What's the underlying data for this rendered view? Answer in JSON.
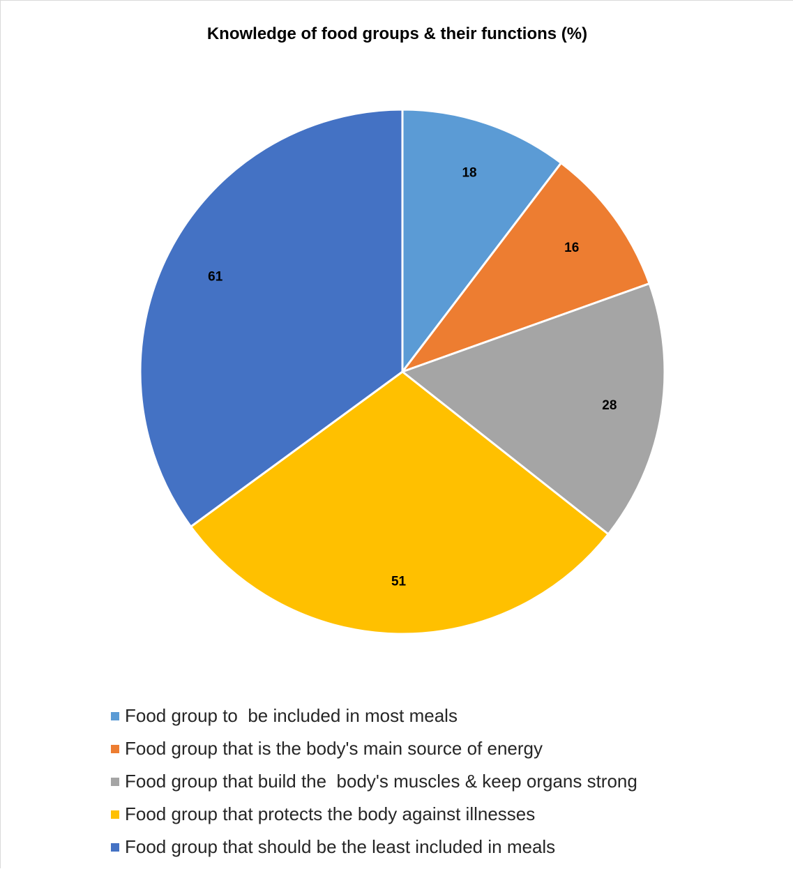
{
  "chart_data": {
    "type": "pie",
    "title": "Knowledge of food groups & their functions (%)",
    "categories": [
      "Food group to  be included in most meals",
      "Food group that is the body's main source of energy",
      "Food group that build the  body's muscles & keep organs strong",
      "Food group that protects the body against illnesses",
      "Food group that should be the least included in meals"
    ],
    "values": [
      18,
      16,
      28,
      51,
      61
    ],
    "data_labels": [
      "18",
      "16",
      "28",
      "51",
      "61"
    ],
    "colors": [
      "#5b9bd5",
      "#ed7d31",
      "#a5a5a5",
      "#ffc000",
      "#4472c4"
    ],
    "legend_position": "bottom",
    "slice_order": "clockwise from 12 o'clock"
  }
}
